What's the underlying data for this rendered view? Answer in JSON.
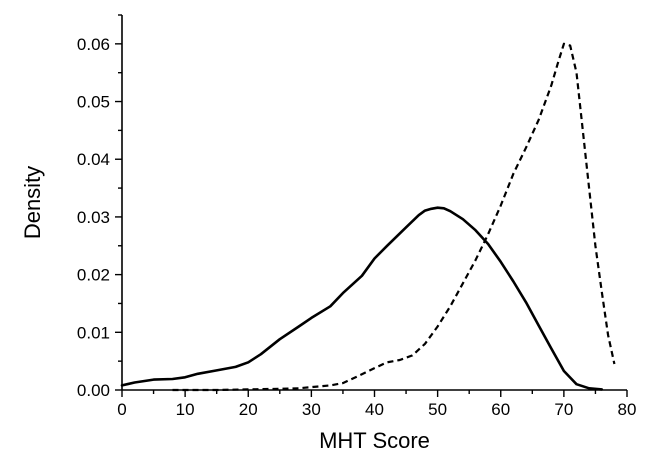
{
  "chart_data": {
    "type": "line",
    "title": "",
    "xlabel": "MHT Score",
    "ylabel": "Density",
    "xlim": [
      0,
      80
    ],
    "ylim": [
      0,
      0.065
    ],
    "xticks": [
      0,
      10,
      20,
      30,
      40,
      50,
      60,
      70,
      80
    ],
    "yticks": [
      0.0,
      0.01,
      0.02,
      0.03,
      0.04,
      0.05,
      0.06
    ],
    "xtick_labels": [
      "0",
      "10",
      "20",
      "30",
      "40",
      "50",
      "60",
      "70",
      "80"
    ],
    "ytick_labels": [
      "0.00",
      "0.01",
      "0.02",
      "0.03",
      "0.04",
      "0.05",
      "0.06"
    ],
    "grid": false,
    "legend": "none",
    "series": [
      {
        "style": "solid",
        "x": [
          0,
          2,
          5,
          8,
          10,
          12,
          15,
          18,
          20,
          22,
          25,
          28,
          30,
          33,
          35,
          38,
          40,
          42,
          45,
          47,
          48,
          49,
          50,
          51,
          52,
          54,
          56,
          58,
          60,
          62,
          64,
          66,
          68,
          70,
          72,
          74,
          76
        ],
        "y": [
          0.0008,
          0.0013,
          0.0018,
          0.0019,
          0.0022,
          0.0028,
          0.0034,
          0.004,
          0.0048,
          0.0062,
          0.0088,
          0.011,
          0.0125,
          0.0145,
          0.0168,
          0.0198,
          0.0228,
          0.025,
          0.0282,
          0.0303,
          0.0311,
          0.0314,
          0.0316,
          0.0315,
          0.031,
          0.0296,
          0.0277,
          0.0253,
          0.0222,
          0.0188,
          0.0152,
          0.0112,
          0.0072,
          0.0033,
          0.001,
          0.0003,
          0.0001
        ]
      },
      {
        "style": "dashed",
        "x": [
          8,
          15,
          20,
          25,
          28,
          30,
          33,
          35,
          37,
          40,
          42,
          44,
          46,
          48,
          50,
          52,
          54,
          56,
          58,
          60,
          62,
          64,
          66,
          68,
          69,
          70,
          71,
          72,
          73,
          74,
          75,
          76,
          77,
          78
        ],
        "y": [
          0,
          0,
          0.0001,
          0.0002,
          0.0003,
          0.0005,
          0.0008,
          0.0012,
          0.0022,
          0.0038,
          0.0048,
          0.0052,
          0.006,
          0.008,
          0.011,
          0.0145,
          0.0185,
          0.0225,
          0.027,
          0.032,
          0.0375,
          0.042,
          0.0468,
          0.0528,
          0.0565,
          0.06,
          0.0597,
          0.055,
          0.045,
          0.035,
          0.025,
          0.017,
          0.0095,
          0.0045
        ]
      }
    ]
  }
}
